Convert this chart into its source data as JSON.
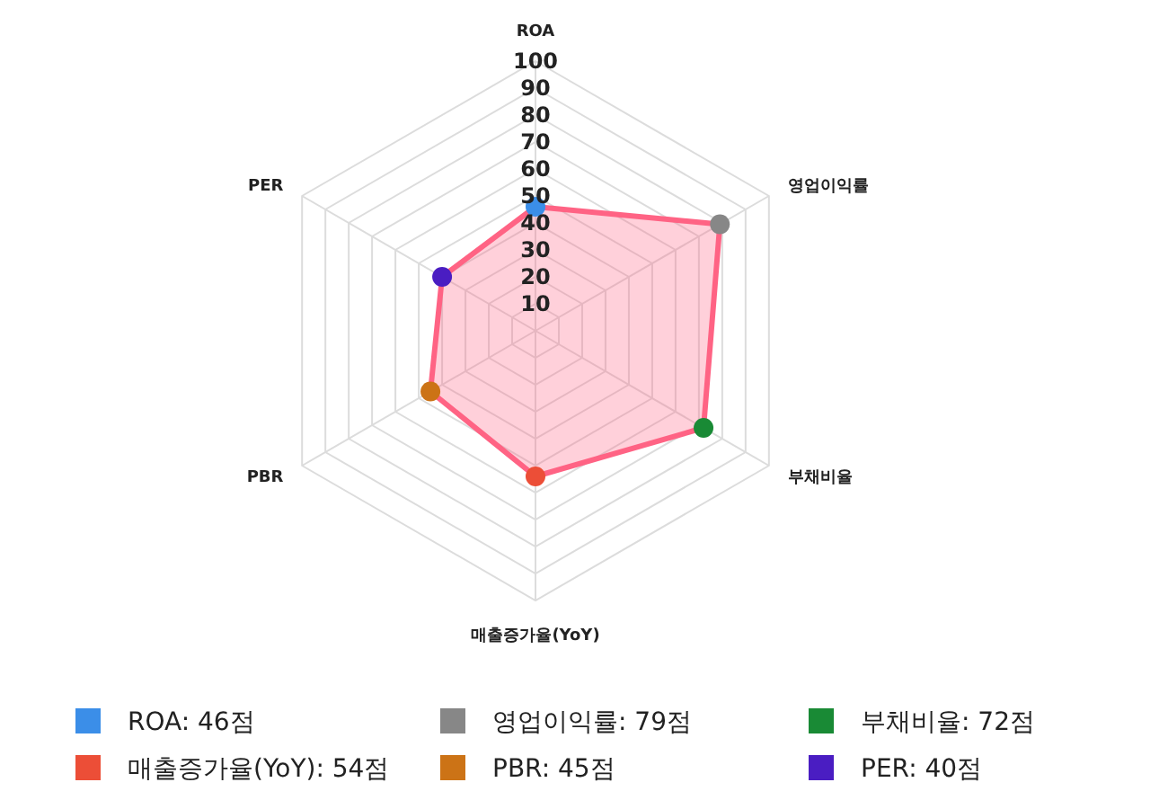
{
  "chart_data": {
    "type": "radar",
    "categories": [
      "ROA",
      "영업이익률",
      "부채비율",
      "매출증가율(YoY)",
      "PBR",
      "PER"
    ],
    "series": [
      {
        "color": "#ff6384",
        "values": [
          46,
          79,
          72,
          54,
          45,
          40
        ],
        "colors": [
          "#3b8ee8",
          "#878787",
          "#198a35",
          "#ec4e37",
          "#cc7316",
          "#4a1dc2"
        ]
      }
    ],
    "annotations": [
      "ROA: 46점",
      "영업이익률: 79점",
      "부채비율: 72점",
      "매출증가율(YoY): 54점",
      "PBR: 45점",
      "PER: 40점"
    ],
    "ylim": [
      0,
      100
    ],
    "yticks": [
      10,
      20,
      30,
      40,
      50,
      60,
      70,
      80,
      90,
      100
    ],
    "grid": true,
    "marker": "circle"
  }
}
